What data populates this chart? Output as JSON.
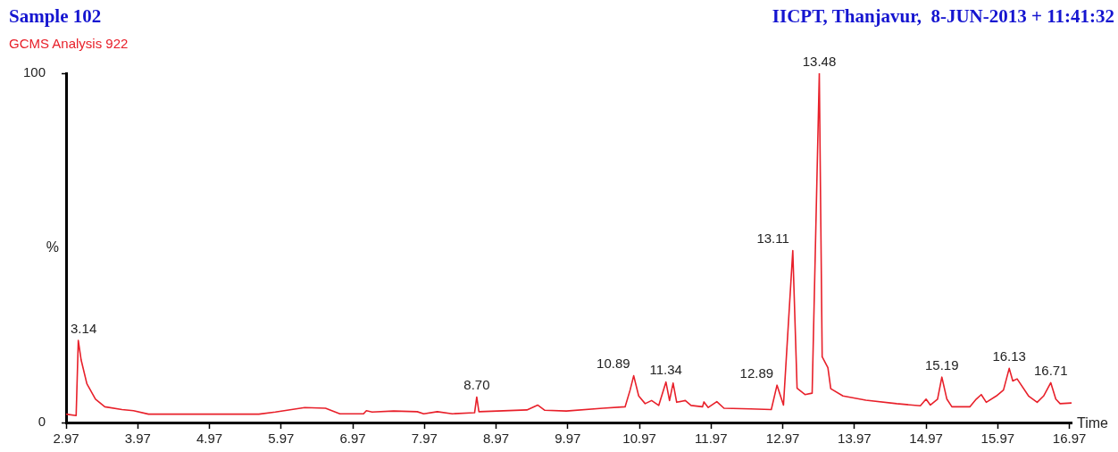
{
  "chart_data": {
    "type": "line",
    "title": "Sample 102",
    "subtitle": "GCMS Analysis 922",
    "xlabel": "Time",
    "ylabel": "%",
    "annotations": [
      "IICPT, Thanjavur,  8-JUN-2013 + 11:41:32",
      {
        "text": "3.14",
        "x": 3.14,
        "y": 23.5
      },
      {
        "text": "8.70",
        "x": 8.7,
        "y": 7.3
      },
      {
        "text": "10.89",
        "x": 10.89,
        "y": 13.4
      },
      {
        "text": "11.34",
        "x": 11.34,
        "y": 11.6
      },
      {
        "text": "12.89",
        "x": 12.89,
        "y": 10.7
      },
      {
        "text": "13.11",
        "x": 13.11,
        "y": 49.2
      },
      {
        "text": "13.48",
        "x": 13.48,
        "y": 100
      },
      {
        "text": "15.19",
        "x": 15.19,
        "y": 13
      },
      {
        "text": "16.13",
        "x": 16.13,
        "y": 15.5
      },
      {
        "text": "16.71",
        "x": 16.71,
        "y": 11.4
      }
    ],
    "x": [
      2.97,
      3.11,
      3.14,
      3.18,
      3.26,
      3.38,
      3.51,
      3.75,
      3.91,
      4.12,
      4.65,
      5.66,
      5.89,
      6.3,
      6.59,
      6.79,
      7.12,
      7.16,
      7.24,
      7.54,
      7.87,
      7.96,
      8.15,
      8.36,
      8.67,
      8.7,
      8.73,
      8.99,
      9.4,
      9.55,
      9.65,
      9.95,
      10.46,
      10.77,
      10.84,
      10.89,
      10.96,
      11.05,
      11.14,
      11.24,
      11.34,
      11.39,
      11.44,
      11.49,
      11.61,
      11.69,
      11.85,
      11.87,
      11.93,
      12.05,
      12.15,
      12.52,
      12.81,
      12.89,
      12.98,
      13.11,
      13.17,
      13.28,
      13.38,
      13.48,
      13.52,
      13.6,
      13.64,
      13.81,
      14.13,
      14.56,
      14.89,
      14.97,
      15.03,
      15.13,
      15.19,
      15.26,
      15.33,
      15.58,
      15.67,
      15.74,
      15.81,
      15.95,
      16.05,
      16.13,
      16.18,
      16.24,
      16.4,
      16.52,
      16.61,
      16.71,
      16.78,
      16.84,
      17.0
    ],
    "values": [
      2.4,
      2,
      23.5,
      17.9,
      11.1,
      6.7,
      4.5,
      3.7,
      3.4,
      2.4,
      2.4,
      2.4,
      3,
      4.3,
      4.1,
      2.5,
      2.5,
      3.4,
      3,
      3.3,
      3.1,
      2.5,
      3.1,
      2.5,
      2.8,
      7.3,
      3.1,
      3.3,
      3.6,
      5,
      3.5,
      3.3,
      4.1,
      4.5,
      9.3,
      13.4,
      7.6,
      5.4,
      6.3,
      4.9,
      11.6,
      6.3,
      11.3,
      5.8,
      6.3,
      4.9,
      4.5,
      5.9,
      4.3,
      6,
      4.1,
      3.9,
      3.7,
      10.7,
      5,
      49.2,
      9.8,
      8,
      8.4,
      100,
      18.8,
      15.7,
      9.7,
      7.6,
      6.4,
      5.4,
      4.8,
      6.7,
      5,
      6.7,
      13,
      6.7,
      4.5,
      4.5,
      6.7,
      8,
      5.8,
      7.6,
      9.3,
      15.5,
      11.9,
      12.5,
      7.6,
      5.8,
      7.6,
      11.4,
      6.7,
      5.4,
      5.6
    ],
    "color": "#e8202a",
    "xlim": [
      2.97,
      17.0
    ],
    "xticks": [
      2.97,
      3.97,
      4.97,
      5.97,
      6.97,
      7.97,
      8.97,
      9.97,
      10.97,
      11.97,
      12.97,
      13.97,
      14.97,
      15.97,
      16.97
    ],
    "ylim": [
      0,
      100
    ],
    "yticks": [
      0,
      100
    ],
    "grid": false,
    "legend": false,
    "marker": "none",
    "line_style": "solid"
  }
}
